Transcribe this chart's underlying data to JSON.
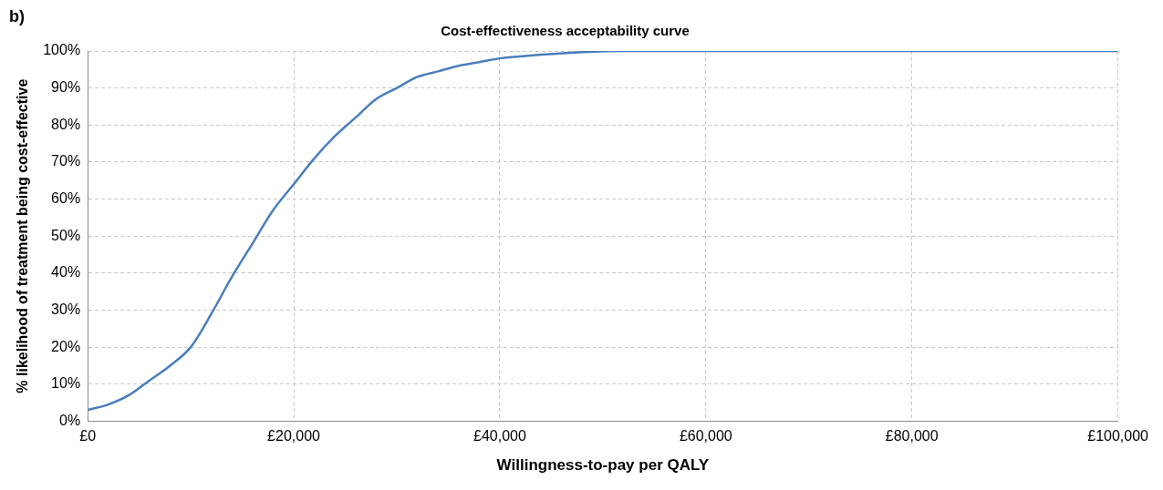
{
  "chart_data": {
    "type": "line",
    "title": "Cost-effectiveness acceptability curve",
    "xlabel": "Willingness-to-pay per QALY",
    "ylabel": "% likelihood of treatment being cost-effective",
    "annotations": [
      "b)"
    ],
    "x": [
      0,
      2000,
      4000,
      6000,
      8000,
      10000,
      12000,
      14000,
      16000,
      18000,
      20000,
      22000,
      24000,
      26000,
      28000,
      30000,
      32000,
      34000,
      36000,
      38000,
      40000,
      44000,
      48000,
      52000,
      60000,
      80000,
      100000
    ],
    "series": [
      {
        "color": "#4a7ebb",
        "values": [
          3,
          4.5,
          7,
          11,
          15,
          20,
          29,
          39,
          48,
          57,
          64,
          71,
          77,
          82,
          87,
          90,
          93,
          94.5,
          96,
          97,
          98,
          99,
          99.7,
          100,
          100,
          100,
          100
        ]
      }
    ],
    "xlim": [
      0,
      100000
    ],
    "xticks": [
      {
        "value": 0,
        "label": "£0"
      },
      {
        "value": 20000,
        "label": "£20,000"
      },
      {
        "value": 40000,
        "label": "£40,000"
      },
      {
        "value": 60000,
        "label": "£60,000"
      },
      {
        "value": 80000,
        "label": "£80,000"
      },
      {
        "value": 100000,
        "label": "£100,000"
      }
    ],
    "ylim": [
      0,
      100
    ],
    "yticks": [
      {
        "value": 0,
        "label": "0%"
      },
      {
        "value": 10,
        "label": "10%"
      },
      {
        "value": 20,
        "label": "20%"
      },
      {
        "value": 30,
        "label": "30%"
      },
      {
        "value": 40,
        "label": "40%"
      },
      {
        "value": 50,
        "label": "50%"
      },
      {
        "value": 60,
        "label": "60%"
      },
      {
        "value": 70,
        "label": "70%"
      },
      {
        "value": 80,
        "label": "80%"
      },
      {
        "value": 90,
        "label": "90%"
      },
      {
        "value": 100,
        "label": "100%"
      }
    ],
    "grid": true,
    "marker": "none",
    "line_style": "solid"
  }
}
